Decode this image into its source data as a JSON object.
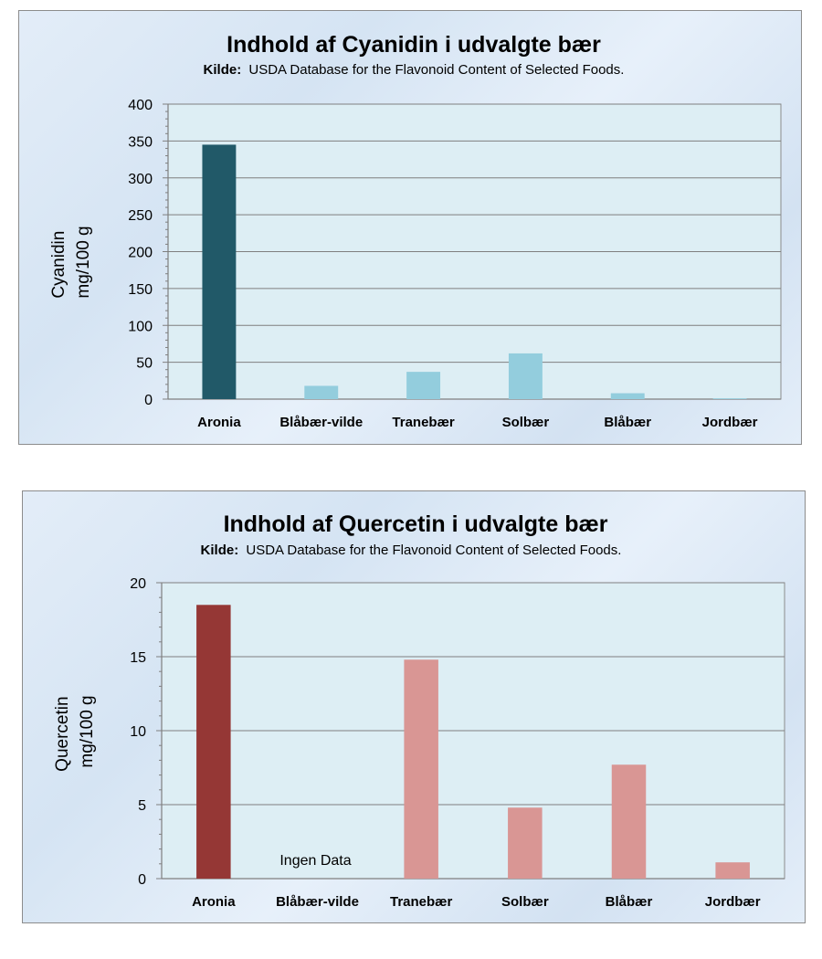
{
  "chart_data": [
    {
      "type": "bar",
      "title": "Indhold af Cyanidin i udvalgte bær",
      "source_label": "Kilde:",
      "source_text": "USDA Database for the Flavonoid Content of Selected Foods.",
      "categories": [
        "Aronia",
        "Blåbær-vilde",
        "Tranebær",
        "Solbær",
        "Blåbær",
        "Jordbær"
      ],
      "values": [
        345,
        18,
        37,
        62,
        8,
        1
      ],
      "ylabel_line1": "Cyanidin",
      "ylabel_line2": "mg/100 g",
      "xlabel": "",
      "ylim": [
        0,
        400
      ],
      "yticks": [
        0,
        50,
        100,
        150,
        200,
        250,
        300,
        350,
        400
      ],
      "grid": true,
      "colors": {
        "highlight": "#215968",
        "others": "#93cddd",
        "plot_bg": "#ddeef4",
        "grid": "#7f7f7f"
      },
      "highlight_index": 0
    },
    {
      "type": "bar",
      "title": "Indhold af Quercetin i udvalgte bær",
      "source_label": "Kilde:",
      "source_text": "USDA Database for the Flavonoid Content of Selected Foods.",
      "categories": [
        "Aronia",
        "Blåbær-vilde",
        "Tranebær",
        "Solbær",
        "Blåbær",
        "Jordbær"
      ],
      "values": [
        18.5,
        null,
        14.8,
        4.8,
        7.7,
        1.1
      ],
      "ylabel_line1": "Quercetin",
      "ylabel_line2": "mg/100 g",
      "xlabel": "",
      "ylim": [
        0,
        20
      ],
      "yticks": [
        0,
        5,
        10,
        15,
        20
      ],
      "grid": true,
      "annotation": {
        "text": "Ingen Data",
        "category_index": 1
      },
      "colors": {
        "highlight": "#953735",
        "others": "#d99694",
        "plot_bg": "#ddeef4",
        "grid": "#7f7f7f"
      },
      "highlight_index": 0
    }
  ]
}
